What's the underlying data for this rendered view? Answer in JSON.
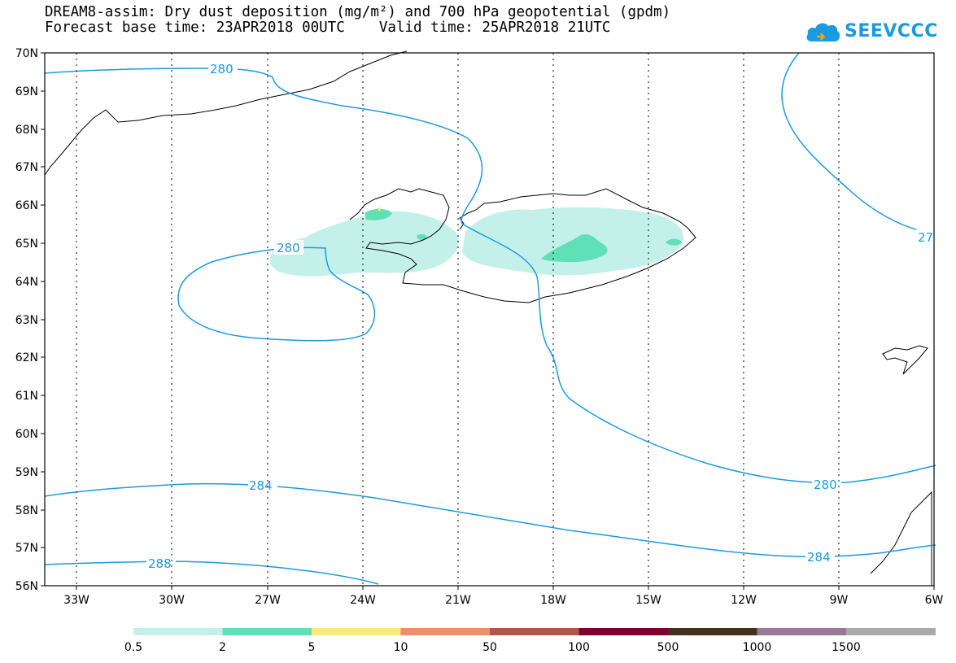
{
  "header": {
    "title_line1": "DREAM8-assim: Dry dust deposition (mg/m²) and 700 hPa geopotential (gpdm)",
    "title_line2": "Forecast base time: 23APR2018 00UTC    Valid time: 25APR2018 21UTC"
  },
  "logo": {
    "text": "SEEVCCC",
    "icon": "cloud-icon"
  },
  "map": {
    "lat_labels": [
      "70N",
      "69N",
      "68N",
      "67N",
      "66N",
      "65N",
      "64N",
      "63N",
      "62N",
      "61N",
      "60N",
      "59N",
      "58N",
      "57N",
      "56N"
    ],
    "lon_labels": [
      "33W",
      "30W",
      "27W",
      "24W",
      "21W",
      "18W",
      "15W",
      "12W",
      "9W",
      "6W"
    ],
    "contour_labels": [
      "280",
      "280",
      "27",
      "280",
      "284",
      "284",
      "288"
    ],
    "grid": "dotted"
  },
  "colorbar": {
    "colors": [
      "#c3f1ea",
      "#5fe0b6",
      "#fbea7a",
      "#ee8e6b",
      "#b2564c",
      "#800030",
      "#42301c",
      "#9c7898",
      "#aaaaaa"
    ],
    "labels": [
      "0.5",
      "2",
      "5",
      "10",
      "50",
      "100",
      "500",
      "1000",
      "1500"
    ]
  },
  "colors": {
    "contour": "#1a9be0",
    "coast": "#000000"
  }
}
